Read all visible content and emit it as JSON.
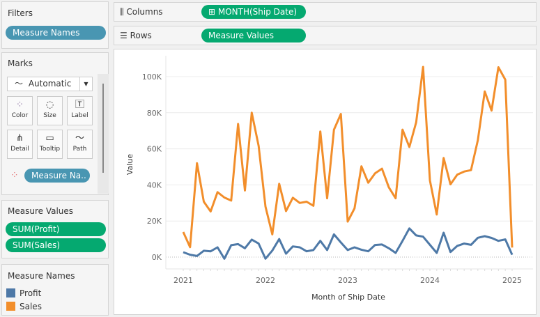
{
  "filters": {
    "title": "Filters",
    "pills": [
      "Measure Names"
    ]
  },
  "marks": {
    "title": "Marks",
    "type": "Automatic",
    "buttons": [
      {
        "label": "Color",
        "icon": "color-dots-icon"
      },
      {
        "label": "Size",
        "icon": "size-icon"
      },
      {
        "label": "Label",
        "icon": "label-T-icon"
      },
      {
        "label": "Detail",
        "icon": "detail-tree-icon"
      },
      {
        "label": "Tooltip",
        "icon": "tooltip-bubble-icon"
      },
      {
        "label": "Path",
        "icon": "path-line-icon"
      }
    ],
    "color_pill": "Measure Na.."
  },
  "measure_values": {
    "title": "Measure Values",
    "pills": [
      "SUM(Profit)",
      "SUM(Sales)"
    ]
  },
  "measure_names": {
    "title": "Measure Names",
    "items": [
      {
        "label": "Profit",
        "color": "#4e79a7"
      },
      {
        "label": "Sales",
        "color": "#f28e2b"
      }
    ]
  },
  "shelves": {
    "columns_label": "Columns",
    "columns_pill": "MONTH(Ship Date)",
    "rows_label": "Rows",
    "rows_pill": "Measure Values"
  },
  "chart_data": {
    "type": "line",
    "xlabel": "Month of Ship Date",
    "ylabel": "Value",
    "x_ticks": [
      "2021",
      "2022",
      "2023",
      "2024",
      "2025"
    ],
    "y_ticks": [
      "0K",
      "20K",
      "40K",
      "60K",
      "80K",
      "100K"
    ],
    "ylim": [
      0,
      110000
    ],
    "grid": true,
    "x": [
      "2021-01",
      "2021-02",
      "2021-03",
      "2021-04",
      "2021-05",
      "2021-06",
      "2021-07",
      "2021-08",
      "2021-09",
      "2021-10",
      "2021-11",
      "2021-12",
      "2022-01",
      "2022-02",
      "2022-03",
      "2022-04",
      "2022-05",
      "2022-06",
      "2022-07",
      "2022-08",
      "2022-09",
      "2022-10",
      "2022-11",
      "2022-12",
      "2023-01",
      "2023-02",
      "2023-03",
      "2023-04",
      "2023-05",
      "2023-06",
      "2023-07",
      "2023-08",
      "2023-09",
      "2023-10",
      "2023-11",
      "2023-12",
      "2024-01",
      "2024-02",
      "2024-03",
      "2024-04",
      "2024-05",
      "2024-06",
      "2024-07",
      "2024-08",
      "2024-09",
      "2024-10",
      "2024-11",
      "2024-12",
      "2025-01"
    ],
    "series": [
      {
        "name": "Profit",
        "color": "#4e79a7",
        "values": [
          2700,
          1300,
          600,
          3500,
          3200,
          5400,
          -900,
          6600,
          7200,
          4900,
          9700,
          7500,
          -900,
          3600,
          10000,
          1900,
          5900,
          5400,
          3200,
          3900,
          9000,
          3900,
          12600,
          8100,
          3900,
          5400,
          4100,
          3200,
          6700,
          7000,
          4900,
          2300,
          9000,
          15900,
          12000,
          11300,
          6800,
          2300,
          13500,
          2800,
          6200,
          7500,
          6800,
          10700,
          11600,
          10600,
          9000,
          9800,
          1300
        ]
      },
      {
        "name": "Sales",
        "color": "#f28e2b",
        "values": [
          13900,
          5500,
          52000,
          30700,
          25300,
          36000,
          33000,
          31300,
          73800,
          36900,
          80000,
          61600,
          28000,
          12600,
          40600,
          25500,
          32900,
          30000,
          30700,
          28400,
          69600,
          32600,
          70600,
          79300,
          19700,
          27000,
          50300,
          41200,
          46400,
          49000,
          38700,
          32600,
          70600,
          61000,
          74700,
          105400,
          42500,
          23600,
          54900,
          40300,
          45700,
          47400,
          48200,
          64800,
          91800,
          81200,
          105200,
          98300,
          5300
        ]
      }
    ]
  }
}
